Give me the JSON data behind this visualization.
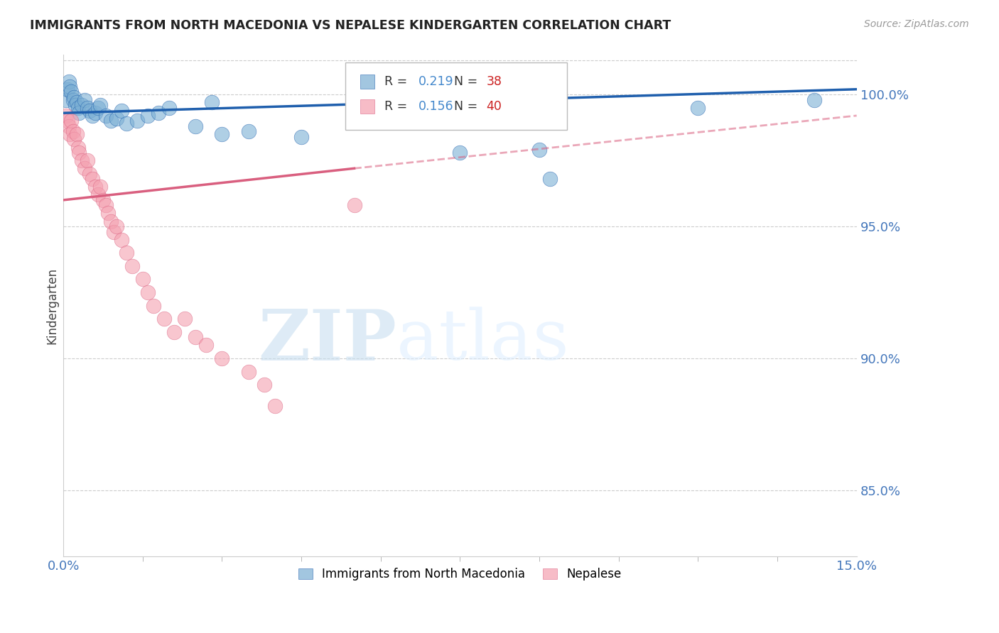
{
  "title": "IMMIGRANTS FROM NORTH MACEDONIA VS NEPALESE KINDERGARTEN CORRELATION CHART",
  "source": "Source: ZipAtlas.com",
  "ylabel": "Kindergarten",
  "xlim": [
    0.0,
    15.0
  ],
  "ylim": [
    82.5,
    101.5
  ],
  "yticks": [
    85.0,
    90.0,
    95.0,
    100.0
  ],
  "blue_R": 0.219,
  "blue_N": 38,
  "pink_R": 0.156,
  "pink_N": 40,
  "blue_color": "#7BAFD4",
  "pink_color": "#F4A0B0",
  "blue_line_color": "#1F5FAD",
  "pink_line_color": "#D95F7F",
  "blue_line_x0": 0.0,
  "blue_line_y0": 99.3,
  "blue_line_x1": 15.0,
  "blue_line_y1": 100.2,
  "pink_solid_x0": 0.0,
  "pink_solid_y0": 96.0,
  "pink_solid_x1": 5.5,
  "pink_solid_y1": 97.2,
  "pink_dash_x0": 5.5,
  "pink_dash_y0": 97.2,
  "pink_dash_x1": 15.0,
  "pink_dash_y1": 99.2,
  "blue_scatter_x": [
    0.05,
    0.08,
    0.1,
    0.12,
    0.15,
    0.18,
    0.2,
    0.22,
    0.25,
    0.28,
    0.3,
    0.35,
    0.4,
    0.45,
    0.5,
    0.55,
    0.6,
    0.65,
    0.7,
    0.8,
    0.9,
    1.0,
    1.1,
    1.2,
    1.4,
    1.6,
    1.8,
    2.0,
    2.5,
    3.0,
    3.5,
    4.5,
    7.5,
    9.0,
    9.2,
    12.0,
    14.2,
    2.8
  ],
  "blue_scatter_y": [
    99.8,
    100.2,
    100.5,
    100.3,
    100.1,
    99.8,
    99.9,
    99.6,
    99.7,
    99.5,
    99.3,
    99.6,
    99.8,
    99.5,
    99.4,
    99.2,
    99.3,
    99.5,
    99.6,
    99.2,
    99.0,
    99.1,
    99.4,
    98.9,
    99.0,
    99.2,
    99.3,
    99.5,
    98.8,
    98.5,
    98.6,
    98.4,
    97.8,
    97.9,
    96.8,
    99.5,
    99.8,
    99.7
  ],
  "pink_scatter_x": [
    0.05,
    0.08,
    0.1,
    0.12,
    0.15,
    0.18,
    0.2,
    0.25,
    0.28,
    0.3,
    0.35,
    0.4,
    0.45,
    0.5,
    0.55,
    0.6,
    0.65,
    0.7,
    0.75,
    0.8,
    0.85,
    0.9,
    0.95,
    1.0,
    1.1,
    1.2,
    1.3,
    1.5,
    1.6,
    1.7,
    1.9,
    2.1,
    2.3,
    2.5,
    2.7,
    3.0,
    3.5,
    3.8,
    5.5,
    4.0
  ],
  "pink_scatter_y": [
    99.2,
    99.0,
    98.8,
    98.5,
    99.0,
    98.6,
    98.3,
    98.5,
    98.0,
    97.8,
    97.5,
    97.2,
    97.5,
    97.0,
    96.8,
    96.5,
    96.2,
    96.5,
    96.0,
    95.8,
    95.5,
    95.2,
    94.8,
    95.0,
    94.5,
    94.0,
    93.5,
    93.0,
    92.5,
    92.0,
    91.5,
    91.0,
    91.5,
    90.8,
    90.5,
    90.0,
    89.5,
    89.0,
    95.8,
    88.2
  ],
  "watermark_zip": "ZIP",
  "watermark_atlas": "atlas",
  "background_color": "#ffffff",
  "grid_color": "#cccccc",
  "legend_r_color": "#4488CC",
  "legend_n_color": "#CC2222",
  "axis_label_color": "#4477BB"
}
